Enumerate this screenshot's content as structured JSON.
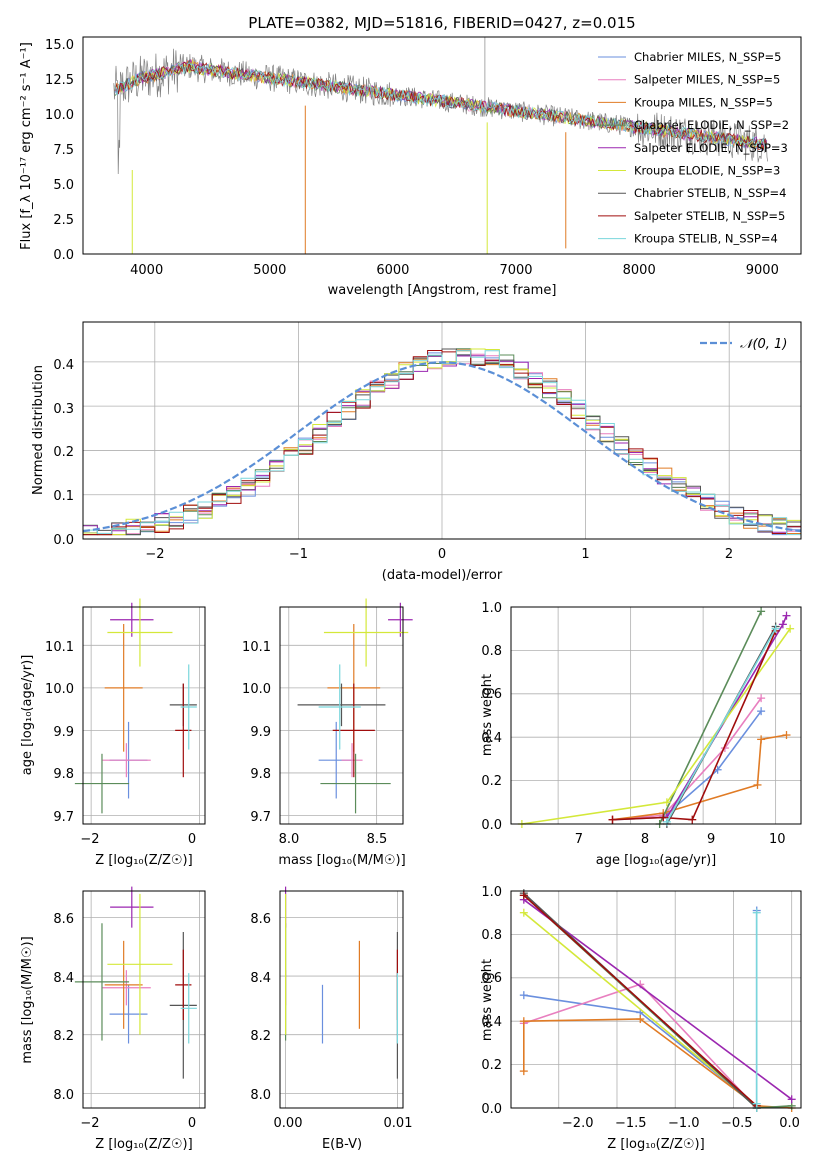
{
  "chart_data": [
    {
      "type": "line",
      "title": "PLATE=0382, MJD=51816, FIBERID=0427, z=0.015",
      "xlabel": "wavelength [Angstrom, rest frame]",
      "ylabel": "Flux [f_λ 10⁻¹⁷ erg cm⁻² s⁻¹ A⁻¹]",
      "xlim": [
        3500,
        9330
      ],
      "ylim": [
        0,
        15.5
      ],
      "xticks": [
        "4000",
        "5000",
        "6000",
        "7000",
        "8000",
        "9000"
      ],
      "yticks": [
        "0.0",
        "2.5",
        "5.0",
        "7.5",
        "10.0",
        "12.5",
        "15.0"
      ],
      "legend_position": "top-right",
      "legend": [
        {
          "name": "Chabrier MILES, N_SSP=5",
          "color": "#6a8fde"
        },
        {
          "name": "Salpeter MILES, N_SSP=5",
          "color": "#e87fbf"
        },
        {
          "name": "Kroupa MILES, N_SSP=5",
          "color": "#e07b25"
        },
        {
          "name": "Chabrier ELODIE, N_SSP=2",
          "color": "#5b8c5a"
        },
        {
          "name": "Salpeter ELODIE, N_SSP=3",
          "color": "#9b27b0"
        },
        {
          "name": "Kroupa ELODIE, N_SSP=3",
          "color": "#d4e83a"
        },
        {
          "name": "Chabrier STELIB, N_SSP=4",
          "color": "#555555"
        },
        {
          "name": "Salpeter STELIB, N_SSP=5",
          "color": "#a00d0d"
        },
        {
          "name": "Kroupa STELIB, N_SSP=4",
          "color": "#7ad6dc"
        }
      ],
      "grid": false
    },
    {
      "type": "line",
      "xlabel": "(data-model)/error",
      "ylabel": "Normed distribution",
      "xlim": [
        -2.5,
        2.5
      ],
      "ylim": [
        0,
        0.49
      ],
      "xticks": [
        "−2",
        "−1",
        "0",
        "1",
        "2"
      ],
      "yticks": [
        "0.0",
        "0.1",
        "0.2",
        "0.3",
        "0.4"
      ],
      "legend": [
        {
          "name": "𝒩(0, 1)",
          "color": "#5b8fd6"
        }
      ],
      "legend_position": "top-right",
      "grid": true
    },
    {
      "type": "scatter",
      "xlabel": "Z [log₁₀(Z/Z☉)]",
      "ylabel": "age  [log₁₀(age/yr)]",
      "xlim": [
        -2.15,
        0.1
      ],
      "ylim": [
        9.68,
        10.19
      ],
      "xticks": [
        "−2",
        "0"
      ],
      "yticks": [
        "9.7",
        "9.8",
        "9.9",
        "10.0",
        "10.1"
      ],
      "grid": true
    },
    {
      "type": "scatter",
      "xlabel": "mass [log₁₀(M/M☉)]",
      "xlim": [
        7.95,
        8.65
      ],
      "ylim": [
        9.68,
        10.19
      ],
      "xticks": [
        "8.0",
        "8.5"
      ],
      "yticks": [
        "9.7",
        "9.8",
        "9.9",
        "10.0",
        "10.1"
      ],
      "grid": true
    },
    {
      "type": "line",
      "xlabel": "age  [log₁₀(age/yr)]",
      "ylabel": "mass weight",
      "xlim": [
        6.35,
        10.35
      ],
      "ylim": [
        0,
        1.0
      ],
      "xticks": [
        "7",
        "8",
        "9",
        "10"
      ],
      "yticks": [
        "0.0",
        "0.2",
        "0.4",
        "0.6",
        "0.8",
        "1.0"
      ],
      "grid": true
    },
    {
      "type": "scatter",
      "xlabel": "Z [log₁₀(Z/Z☉)]",
      "ylabel": "mass [log₁₀(M/M☉)]",
      "xlim": [
        -2.15,
        0.1
      ],
      "ylim": [
        7.95,
        8.69
      ],
      "xticks": [
        "−2",
        "0"
      ],
      "yticks": [
        "8.0",
        "8.2",
        "8.4",
        "8.6"
      ],
      "grid": true
    },
    {
      "type": "scatter",
      "xlabel": "E(B-V)",
      "xlim": [
        -0.0005,
        0.0105
      ],
      "ylim": [
        7.95,
        8.69
      ],
      "xticks": [
        "0.00",
        "0.01"
      ],
      "yticks": [
        "8.0",
        "8.2",
        "8.4",
        "8.6"
      ],
      "grid": true
    },
    {
      "type": "line",
      "xlabel": "Z [log₁₀(Z/Z☉)]",
      "ylabel": "mass weight",
      "xlim": [
        -2.41,
        0.08
      ],
      "ylim": [
        0,
        1.0
      ],
      "xticks": [
        "−2.0",
        "−1.5",
        "−1.0",
        "−0.5",
        "0.0"
      ],
      "yticks": [
        "0.0",
        "0.2",
        "0.4",
        "0.6",
        "0.8",
        "1.0"
      ],
      "grid": true
    }
  ]
}
